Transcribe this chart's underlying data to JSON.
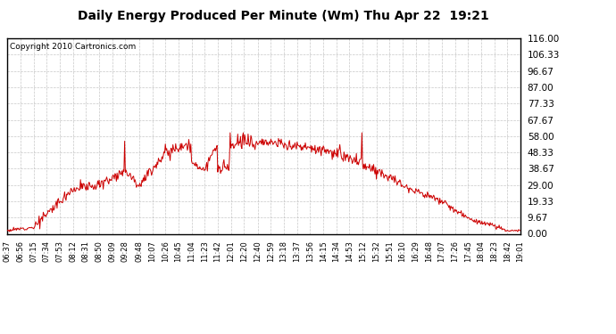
{
  "title": "Daily Energy Produced Per Minute (Wm) Thu Apr 22  19:21",
  "copyright": "Copyright 2010 Cartronics.com",
  "background_color": "#ffffff",
  "plot_bg_color": "#ffffff",
  "line_color": "#cc0000",
  "grid_color": "#b0b0b0",
  "ymin": 0.0,
  "ymax": 116.0,
  "yticks": [
    0.0,
    9.67,
    19.33,
    29.0,
    38.67,
    48.33,
    58.0,
    67.67,
    77.33,
    87.0,
    96.67,
    106.33,
    116.0
  ],
  "xtick_labels": [
    "06:37",
    "06:56",
    "07:15",
    "07:34",
    "07:53",
    "08:12",
    "08:31",
    "08:50",
    "09:09",
    "09:28",
    "09:48",
    "10:07",
    "10:26",
    "10:45",
    "11:04",
    "11:23",
    "11:42",
    "12:01",
    "12:20",
    "12:40",
    "12:59",
    "13:18",
    "13:37",
    "13:56",
    "14:15",
    "14:34",
    "14:53",
    "15:12",
    "15:32",
    "15:51",
    "16:10",
    "16:29",
    "16:48",
    "17:07",
    "17:26",
    "17:45",
    "18:04",
    "18:23",
    "18:42",
    "19:01"
  ]
}
